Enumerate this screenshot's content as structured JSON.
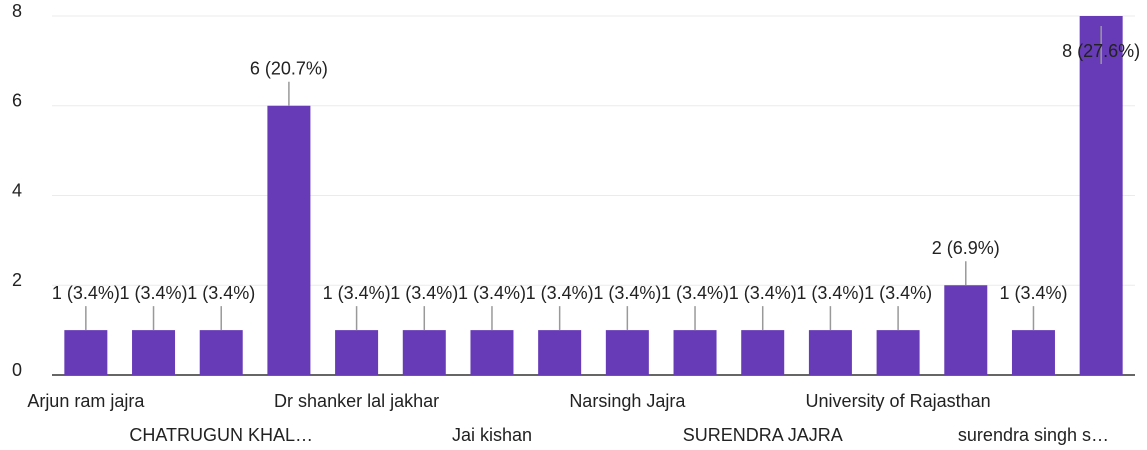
{
  "chart_data": {
    "type": "bar",
    "categories": [
      "Arjun ram jajra",
      null,
      "CHATRUGUN KHAL…",
      null,
      "Dr shanker lal jakhar",
      null,
      "Jai kishan",
      null,
      "Narsingh Jajra",
      null,
      "SURENDRA JAJRA",
      null,
      "University of Rajasthan",
      null,
      "surendra singh s…",
      null
    ],
    "values": [
      1,
      1,
      1,
      6,
      1,
      1,
      1,
      1,
      1,
      1,
      1,
      1,
      1,
      2,
      1,
      8
    ],
    "value_labels": [
      "1 (3.4%)",
      "1 (3.4%)",
      "1 (3.4%)",
      "6 (20.7%)",
      "1 (3.4%)",
      "1 (3.4%)",
      "1 (3.4%)",
      "1 (3.4%)",
      "1 (3.4%)",
      "1 (3.4%)",
      "1 (3.4%)",
      "1 (3.4%)",
      "1 (3.4%)",
      "2 (6.9%)",
      "1 (3.4%)",
      "8 (27.6%)"
    ],
    "color": "#673ab7",
    "ylim": [
      0,
      8
    ],
    "yticks": [
      0,
      2,
      4,
      6,
      8
    ],
    "grid": true
  }
}
